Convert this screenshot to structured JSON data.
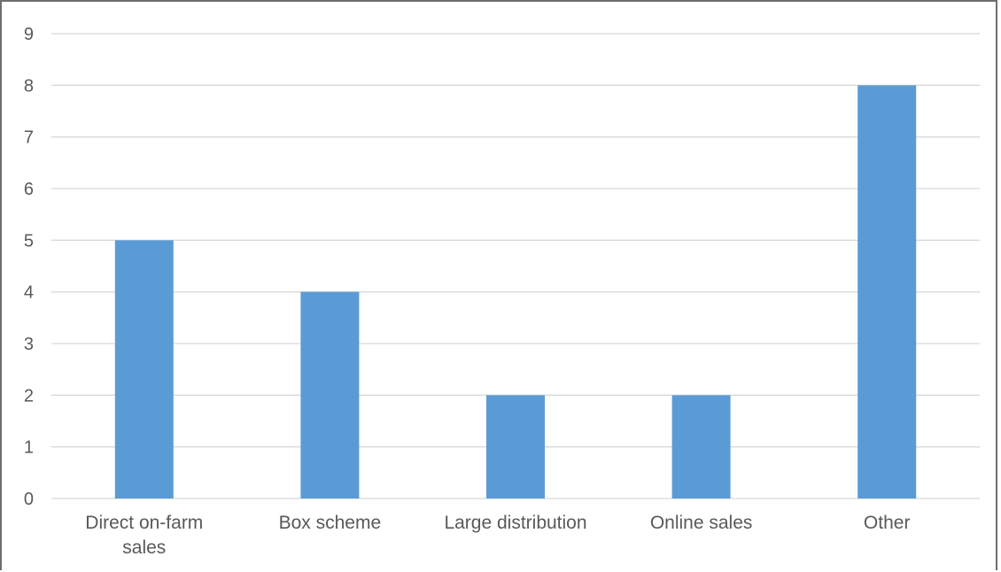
{
  "chart_data": {
    "type": "bar",
    "categories": [
      [
        "Direct on-farm",
        "sales"
      ],
      [
        "Box scheme"
      ],
      [
        "Large distribution"
      ],
      [
        "Online sales"
      ],
      [
        "Other"
      ]
    ],
    "values": [
      5,
      4,
      2,
      2,
      8
    ],
    "title": "",
    "xlabel": "",
    "ylabel": "",
    "ylim": [
      0,
      9
    ],
    "yticks": [
      0,
      1,
      2,
      3,
      4,
      5,
      6,
      7,
      8,
      9
    ],
    "grid": true,
    "legend": "none",
    "bar_color": "#5b9bd5",
    "grid_color": "#d9d9d9",
    "text_color": "#595959"
  }
}
